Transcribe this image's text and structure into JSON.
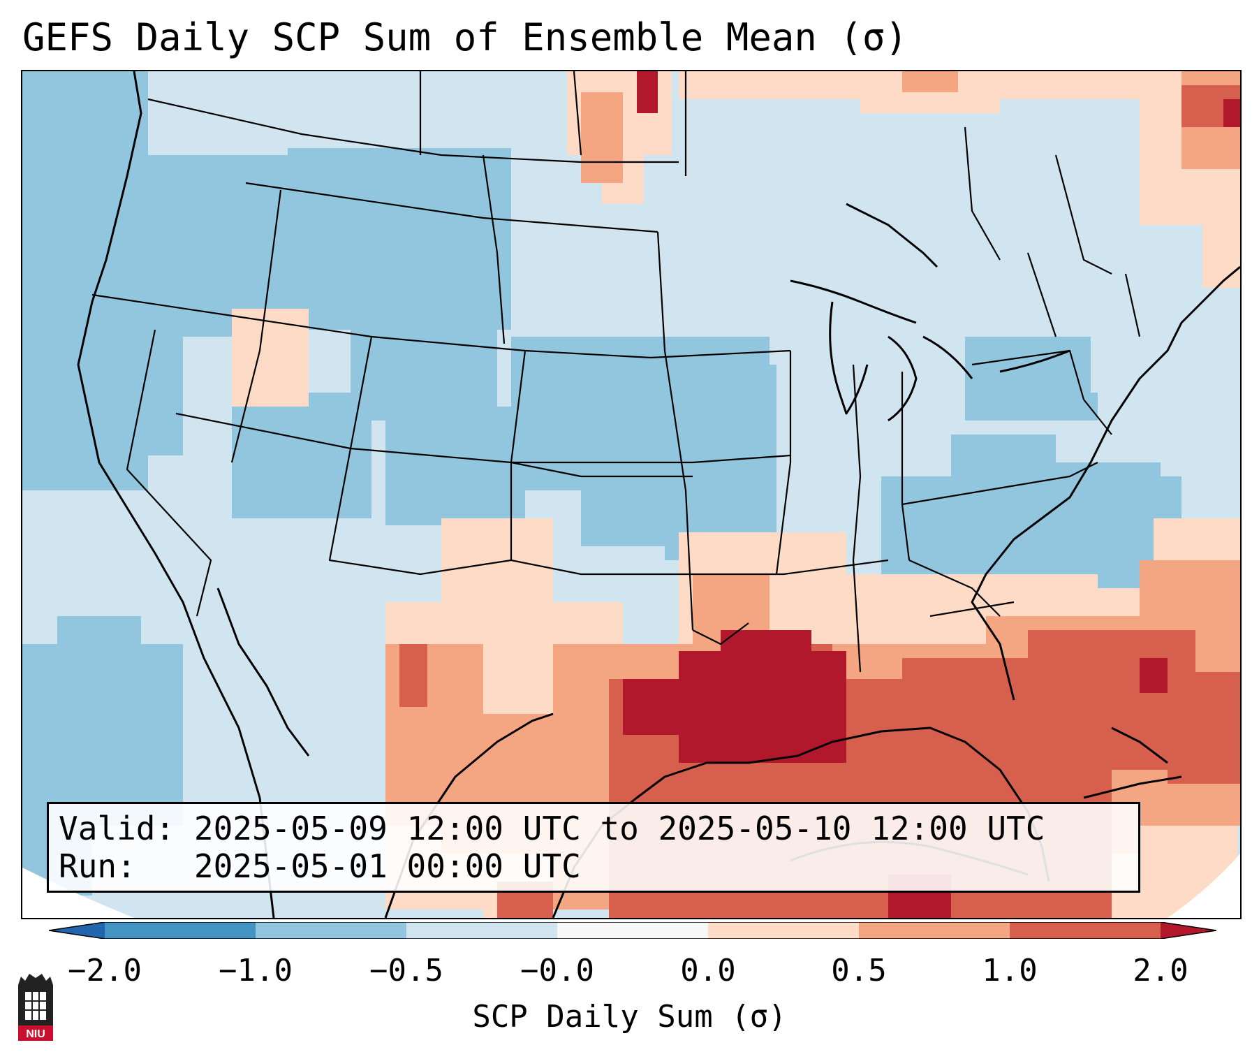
{
  "title": "GEFS Daily SCP Sum of Ensemble Mean (σ)",
  "info": {
    "valid_label": "Valid:",
    "valid_value": "2025-05-09 12:00 UTC to 2025-05-10 12:00 UTC",
    "run_label": "Run:",
    "run_value": "2025-05-01 00:00 UTC"
  },
  "colorbar": {
    "label": "SCP Daily Sum (σ)",
    "ticks": [
      "−2.0",
      "−1.0",
      "−0.5",
      "−0.0",
      "0.0",
      "0.5",
      "1.0",
      "2.0"
    ],
    "bin_colors": [
      "#4393c3",
      "#92c5de",
      "#d1e5f0",
      "#f7f7f7",
      "#fddbc7",
      "#f4a582",
      "#d6604d"
    ],
    "under_color": "#2166ac",
    "over_color": "#b2182b"
  },
  "logo": {
    "text": "NIU",
    "icon": "niu-castle-icon"
  }
}
